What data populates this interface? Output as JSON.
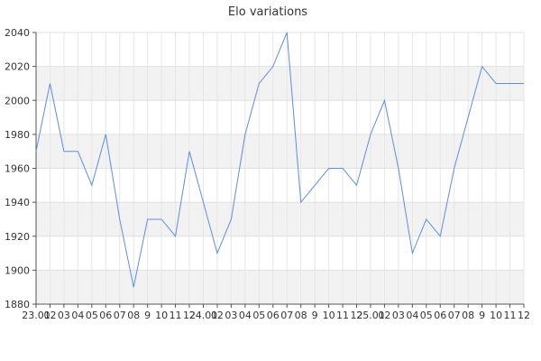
{
  "chart_data": {
    "type": "line",
    "title": "Elo variations",
    "xlabel": "",
    "ylabel": "",
    "x_tick_labels": [
      "23.01",
      "02",
      "03",
      "04",
      "05",
      "06",
      "07",
      "08",
      "9",
      "10",
      "11",
      "12",
      "24.01",
      "02",
      "03",
      "04",
      "05",
      "06",
      "07",
      "08",
      "9",
      "10",
      "11",
      "12",
      "25.01",
      "02",
      "03",
      "04",
      "05",
      "06",
      "07",
      "08",
      "9",
      "10",
      "11",
      "12"
    ],
    "y_ticks": [
      1880,
      1900,
      1920,
      1940,
      1960,
      1980,
      2000,
      2020,
      2040
    ],
    "ylim": [
      1880,
      2040
    ],
    "grid": true,
    "alternating_bands": true,
    "series": [
      {
        "values": [
          1970,
          2010,
          1970,
          1970,
          1950,
          1980,
          1930,
          1890,
          1930,
          1930,
          1920,
          1970,
          1940,
          1910,
          1930,
          1980,
          2010,
          2020,
          2040,
          1940,
          1950,
          1960,
          1960,
          1950,
          1980,
          2000,
          1960,
          1910,
          1930,
          1920,
          1960,
          1990,
          2020,
          2010,
          2010,
          2010
        ],
        "color": "#5b8fe0"
      }
    ]
  }
}
